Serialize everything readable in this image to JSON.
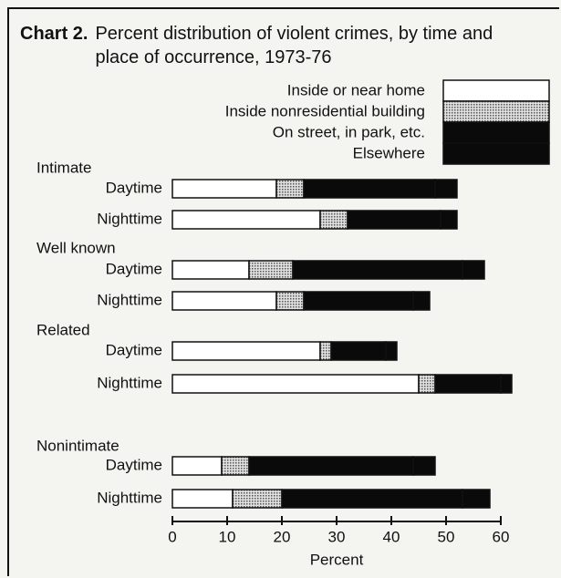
{
  "chart_data": {
    "type": "stacked-barh",
    "title_label": "Chart 2.",
    "title": "Percent distribution of violent crimes, by time and place of occurrence, 1973-76",
    "group_labels": [
      "Intimate",
      "Well known",
      "Related",
      "Nonintimate"
    ],
    "categories": [
      "Daytime",
      "Nighttime",
      "Daytime",
      "Nighttime",
      "Daytime",
      "Nighttime",
      "Daytime",
      "Nighttime"
    ],
    "series": [
      {
        "name": "Inside or near home",
        "color": "#ffffff",
        "values": [
          19,
          27,
          14,
          19,
          27,
          45,
          9,
          11
        ]
      },
      {
        "name": "Inside nonresidential building",
        "color": "#b4b4b4",
        "values": [
          5,
          5,
          8,
          5,
          2,
          3,
          5,
          9
        ]
      },
      {
        "name": "On street, in park, etc.",
        "color": "#0a0a0a",
        "values": [
          24,
          17,
          31,
          20,
          10,
          12,
          30,
          33
        ]
      },
      {
        "name": "Elsewhere",
        "color": "#0a0a0a",
        "values": [
          4,
          3,
          4,
          3,
          2,
          2,
          4,
          5
        ]
      }
    ],
    "xlabel": "Percent",
    "xlim": [
      0,
      60
    ],
    "xticks": [
      0,
      10,
      20,
      30,
      40,
      50,
      60
    ]
  }
}
